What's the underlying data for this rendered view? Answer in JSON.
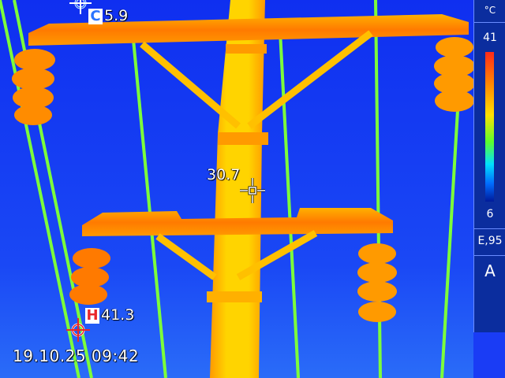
{
  "overlay": {
    "timestamp": "19.10.25 09:42",
    "cold_marker": {
      "letter": "C",
      "value": "5.9"
    },
    "hot_marker": {
      "letter": "H",
      "value": "41.3"
    },
    "center_spot": {
      "value": "30.7"
    }
  },
  "sidebar": {
    "unit": "°C",
    "scale_max": "41",
    "scale_min": "6",
    "emissivity": "E,95",
    "mode": "A"
  },
  "colors": {
    "background": "#1a3cf5",
    "pole": "#ffd400",
    "hot": "#ff6a00",
    "wire": "#7dff3a"
  },
  "icons": {
    "crosshair": "crosshair-icon",
    "cold_marker": "cold-marker-icon",
    "hot_marker": "hot-marker-icon"
  }
}
